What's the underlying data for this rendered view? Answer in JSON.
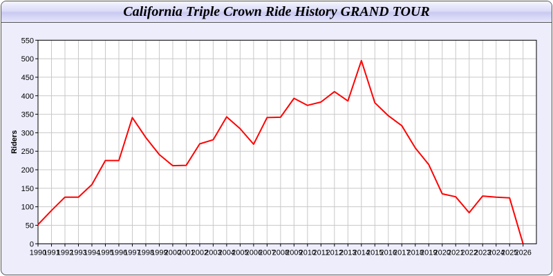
{
  "chart_data": {
    "type": "line",
    "title": "California Triple Crown Ride History GRAND TOUR",
    "xlabel": "",
    "ylabel": "Riders",
    "ylim": [
      0,
      550
    ],
    "yticks": [
      0,
      50,
      100,
      150,
      200,
      250,
      300,
      350,
      400,
      450,
      500,
      550
    ],
    "grid": true,
    "line_color": "#ff0000",
    "x": [
      1990,
      1991,
      1992,
      1993,
      1994,
      1995,
      1996,
      1997,
      1998,
      1999,
      2000,
      2001,
      2002,
      2003,
      2004,
      2005,
      2006,
      2007,
      2008,
      2009,
      2010,
      2011,
      2012,
      2013,
      2014,
      2015,
      2016,
      2017,
      2018,
      2019,
      2020,
      2021,
      2022,
      2023,
      2024,
      2025,
      2026
    ],
    "values": [
      52,
      90,
      126,
      126,
      160,
      225,
      225,
      341,
      287,
      241,
      211,
      212,
      270,
      281,
      343,
      311,
      269,
      341,
      342,
      393,
      374,
      383,
      411,
      386,
      495,
      381,
      346,
      319,
      259,
      214,
      135,
      127,
      84,
      129,
      126,
      124,
      0
    ]
  }
}
